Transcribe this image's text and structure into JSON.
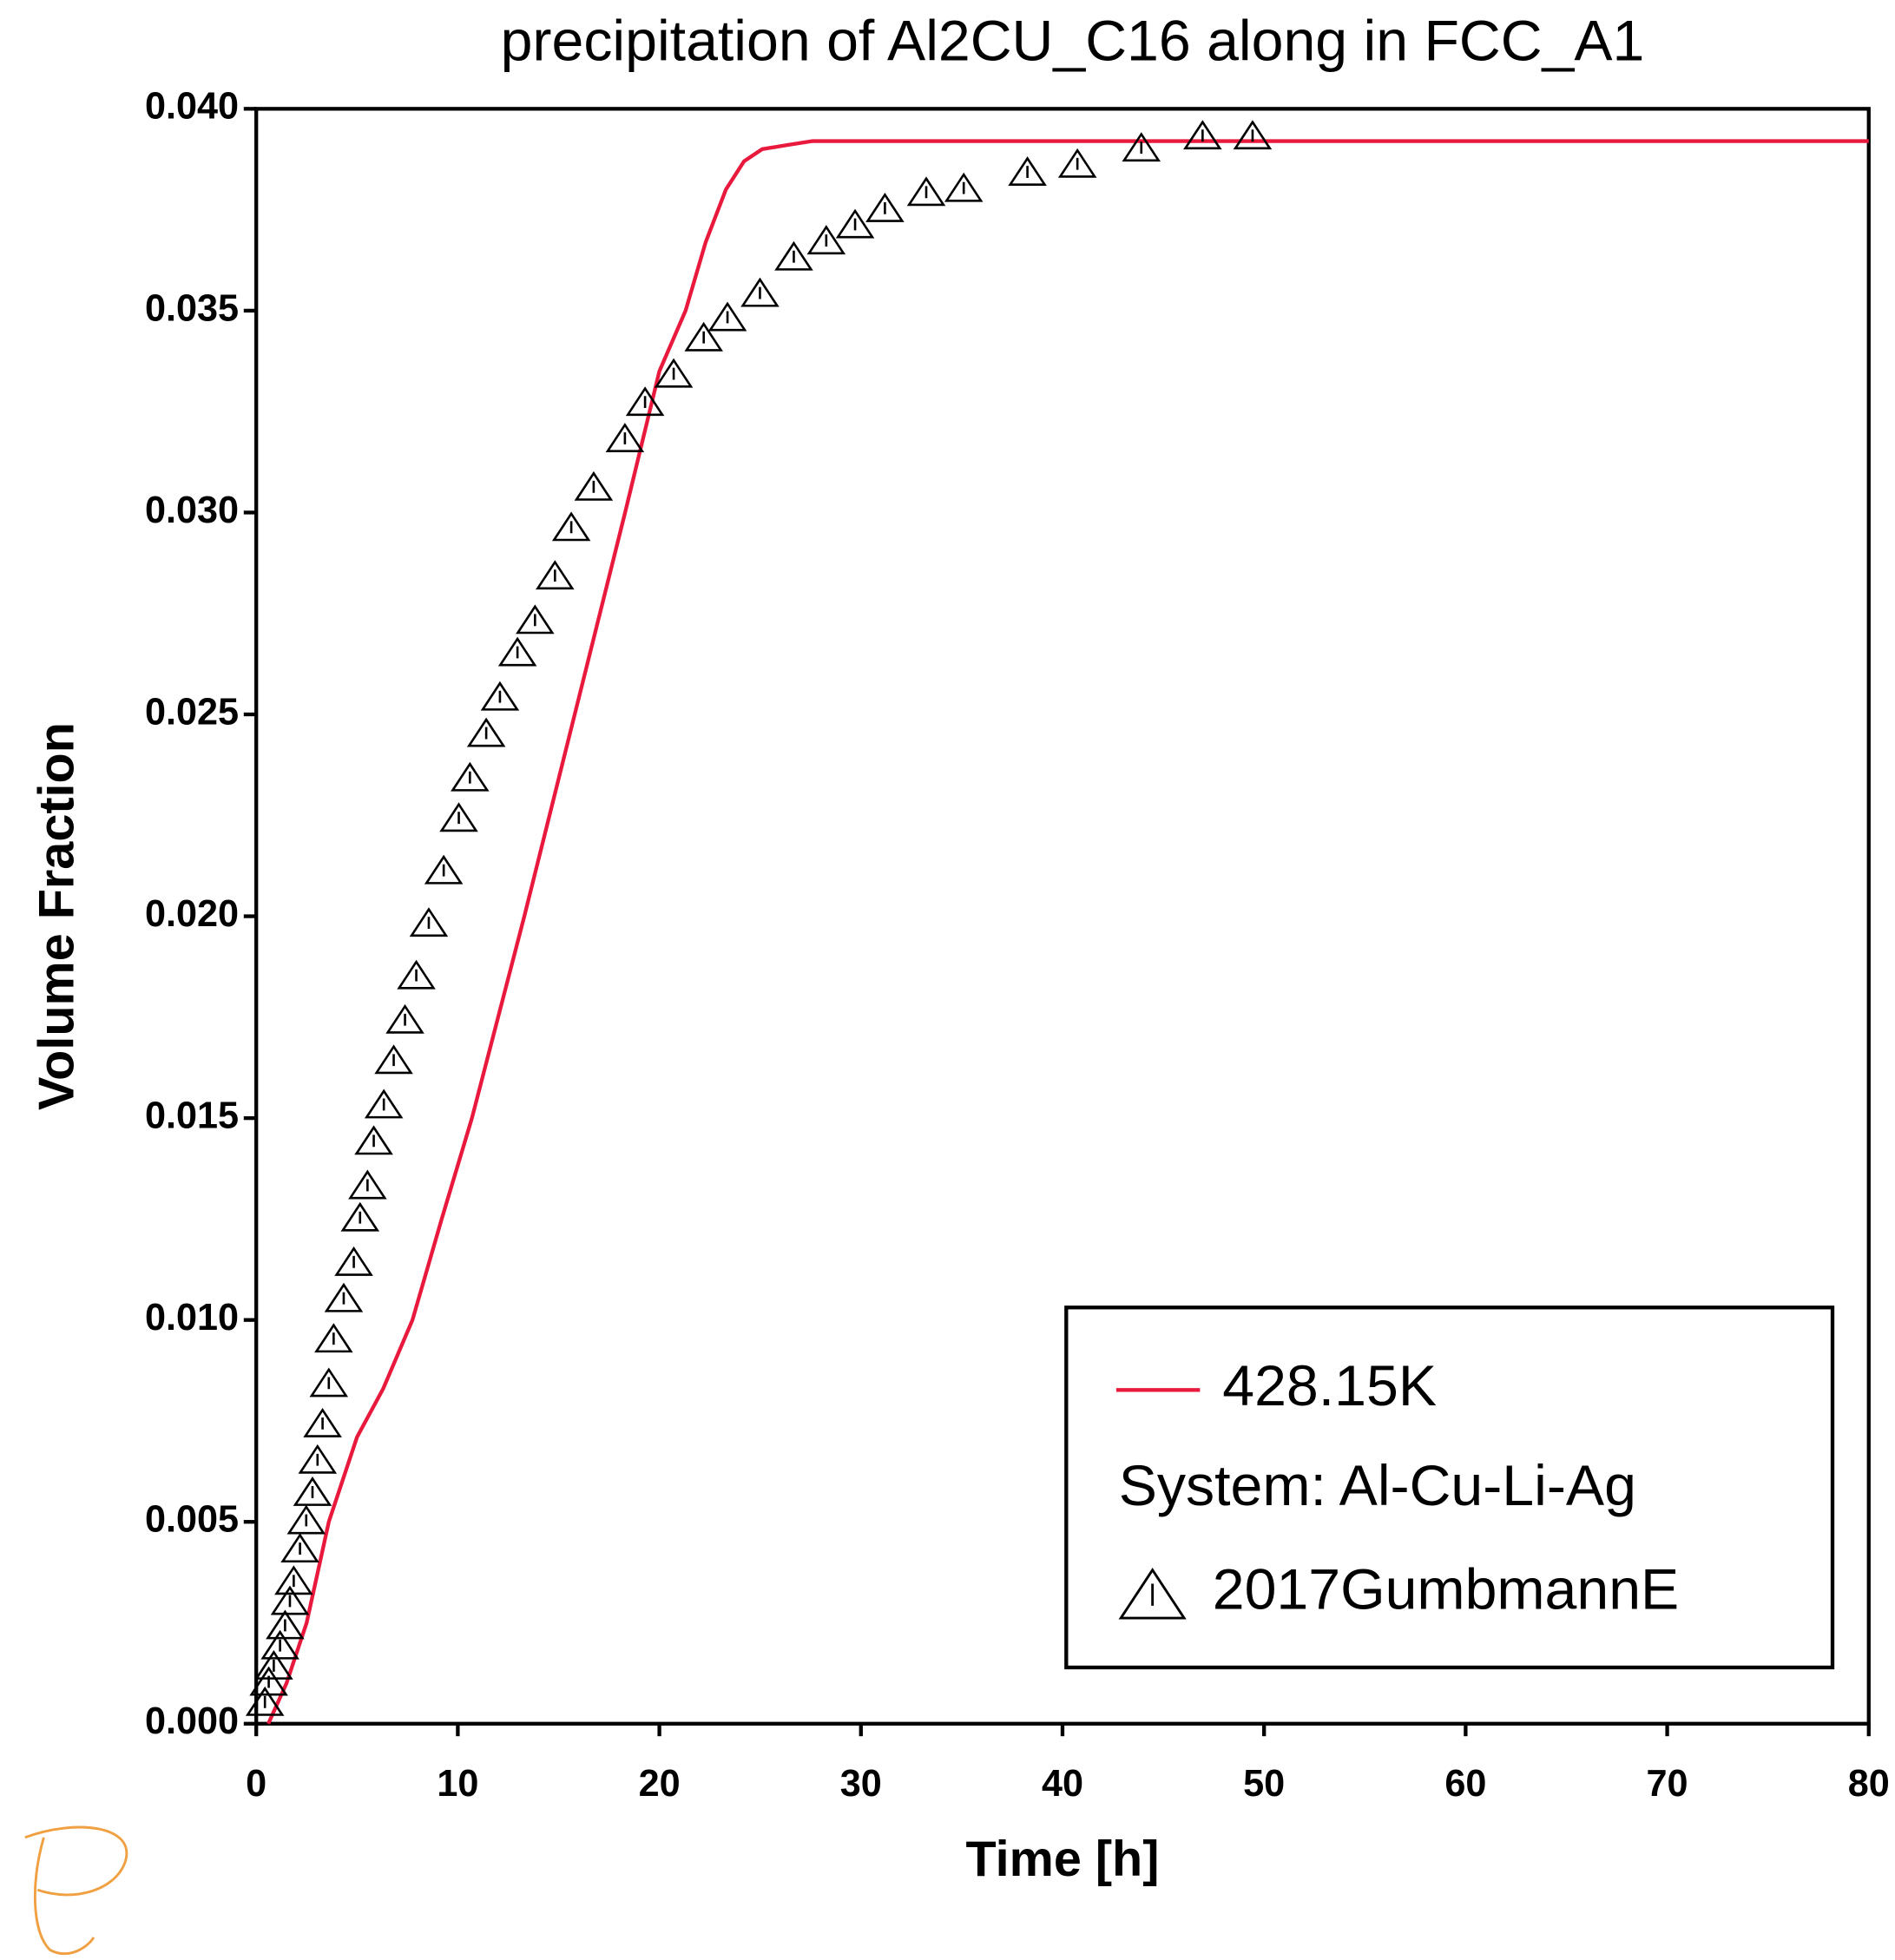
{
  "chart_data": {
    "type": "line",
    "title": "precipitation of Al2CU_C16 along in FCC_A1",
    "x_label": "Time [h]",
    "y_label": "Volume Fraction",
    "xlim": [
      0,
      80
    ],
    "xticks": [
      0,
      10,
      20,
      30,
      40,
      50,
      60,
      70,
      80
    ],
    "ylim": [
      0,
      0.04
    ],
    "yticks": [
      {
        "value": 0,
        "label": "0.000"
      },
      {
        "value": 0.005,
        "label": "0.005"
      },
      {
        "value": 0.01,
        "label": "0.010"
      },
      {
        "value": 0.015,
        "label": "0.015"
      },
      {
        "value": 0.02,
        "label": "0.020"
      },
      {
        "value": 0.025,
        "label": "0.025"
      },
      {
        "value": 0.03,
        "label": "0.030"
      },
      {
        "value": 0.035,
        "label": "0.035"
      },
      {
        "value": 0.04,
        "label": "0.040"
      }
    ],
    "legend_note": "System: Al-Cu-Li-Ag",
    "series": [
      {
        "name": "428.15K",
        "color": "#e8193c",
        "kind": "line",
        "x": [
          0.6,
          1.5,
          2.5,
          3.6,
          5,
          6.3,
          7.75,
          9.2,
          10.7,
          12,
          13.3,
          15.8,
          18.3,
          20,
          21.3,
          22.3,
          23.3,
          24.2,
          25.1,
          26.3,
          27.6,
          30,
          40,
          50,
          60,
          70,
          80
        ],
        "values": [
          0,
          0.001,
          0.0025,
          0.005,
          0.0071,
          0.0083,
          0.01,
          0.0125,
          0.015,
          0.0175,
          0.02,
          0.025,
          0.03,
          0.0335,
          0.035,
          0.0367,
          0.038,
          0.0387,
          0.039,
          0.0391,
          0.0392,
          0.0392,
          0.0392,
          0.0392,
          0.0392,
          0.0392,
          0.0392
        ]
      },
      {
        "name": "2017GumbmannE",
        "color": "#000000",
        "kind": "triangle",
        "x": [
          0.43,
          0.62,
          0.87,
          1.18,
          1.43,
          1.67,
          1.86,
          2.17,
          2.48,
          2.79,
          3.04,
          3.29,
          3.6,
          3.84,
          4.34,
          4.84,
          5.15,
          5.52,
          5.83,
          6.33,
          6.82,
          7.38,
          7.94,
          8.56,
          9.3,
          10.05,
          10.6,
          11.41,
          12.09,
          12.96,
          13.83,
          14.82,
          15.63,
          16.74,
          18.29,
          19.29,
          20.71,
          22.2,
          23.38,
          24.99,
          26.67,
          28.28,
          29.71,
          31.19,
          33.24,
          35.1,
          38.26,
          40.74,
          43.91,
          46.95,
          49.43
        ],
        "values": [
          0.0005,
          0.001,
          0.0014,
          0.0019,
          0.0024,
          0.003,
          0.0035,
          0.0043,
          0.005,
          0.0057,
          0.0065,
          0.0074,
          0.0084,
          0.0095,
          0.0105,
          0.0114,
          0.0125,
          0.0133,
          0.0144,
          0.0153,
          0.0164,
          0.0174,
          0.0185,
          0.0198,
          0.0211,
          0.0224,
          0.0234,
          0.0245,
          0.0254,
          0.0265,
          0.0273,
          0.0284,
          0.0296,
          0.0306,
          0.0318,
          0.0327,
          0.0334,
          0.0343,
          0.0348,
          0.0354,
          0.0363,
          0.0367,
          0.0371,
          0.0375,
          0.0379,
          0.038,
          0.0384,
          0.0386,
          0.039,
          0.0393,
          0.0393
        ]
      }
    ]
  }
}
